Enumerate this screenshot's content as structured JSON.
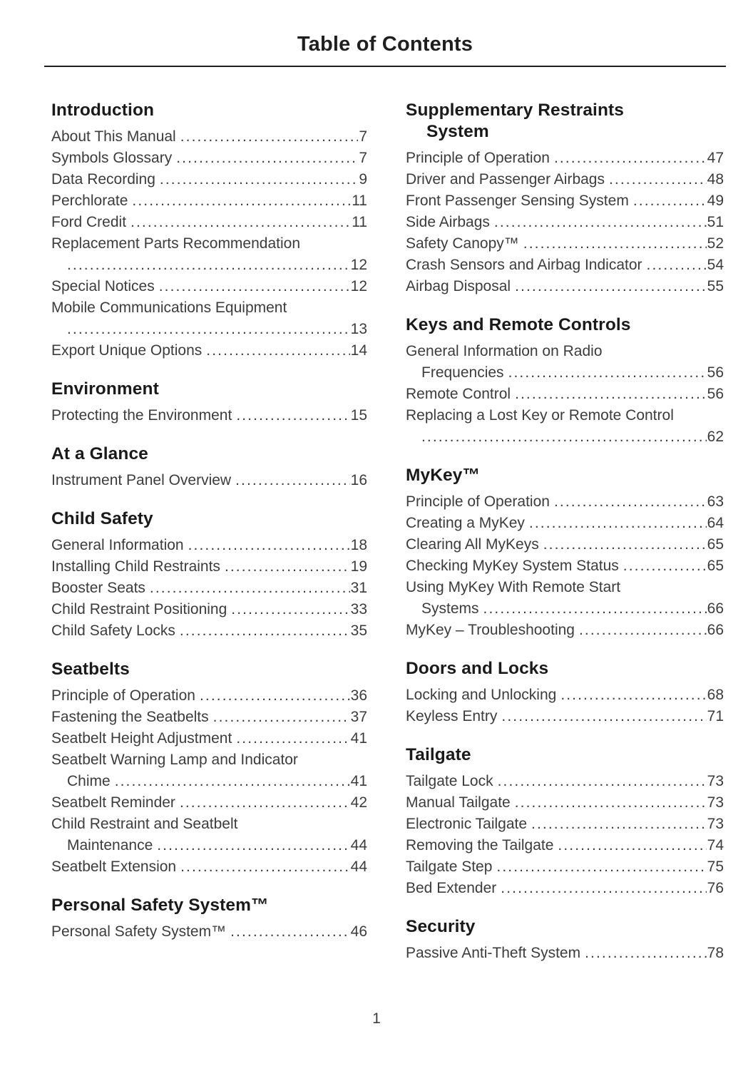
{
  "page": {
    "title": "Table of Contents",
    "page_number": "1"
  },
  "columns": {
    "left": [
      {
        "title": "Introduction",
        "entries": [
          {
            "text": "About This Manual",
            "page": "7"
          },
          {
            "text": "Symbols Glossary",
            "page": "7"
          },
          {
            "text": "Data Recording",
            "page": "9"
          },
          {
            "text": "Perchlorate",
            "page": "11"
          },
          {
            "text": "Ford Credit",
            "page": "11"
          },
          {
            "text": "Replacement Parts Recommendation",
            "text2": "",
            "page": "12"
          },
          {
            "text": "Special Notices",
            "page": "12"
          },
          {
            "text": "Mobile Communications Equipment",
            "text2": "",
            "page": "13"
          },
          {
            "text": "Export Unique Options",
            "page": "14"
          }
        ]
      },
      {
        "title": "Environment",
        "entries": [
          {
            "text": "Protecting the Environment",
            "page": "15"
          }
        ]
      },
      {
        "title": "At a Glance",
        "entries": [
          {
            "text": "Instrument Panel Overview",
            "page": "16"
          }
        ]
      },
      {
        "title": "Child Safety",
        "entries": [
          {
            "text": "General Information",
            "page": "18"
          },
          {
            "text": "Installing Child Restraints",
            "page": "19"
          },
          {
            "text": "Booster Seats",
            "page": "31"
          },
          {
            "text": "Child Restraint Positioning",
            "page": "33"
          },
          {
            "text": "Child Safety Locks",
            "page": "35"
          }
        ]
      },
      {
        "title": "Seatbelts",
        "entries": [
          {
            "text": "Principle of Operation",
            "page": "36"
          },
          {
            "text": "Fastening the Seatbelts",
            "page": "37"
          },
          {
            "text": "Seatbelt Height Adjustment",
            "page": "41"
          },
          {
            "text": "Seatbelt Warning Lamp and Indicator",
            "text2": "Chime",
            "page": "41"
          },
          {
            "text": "Seatbelt Reminder",
            "page": "42"
          },
          {
            "text": "Child Restraint and Seatbelt",
            "text2": "Maintenance",
            "page": "44"
          },
          {
            "text": "Seatbelt Extension",
            "page": "44"
          }
        ]
      },
      {
        "title": "Personal Safety System™",
        "entries": [
          {
            "text": "Personal Safety System™",
            "page": "46"
          }
        ]
      }
    ],
    "right": [
      {
        "title": "Supplementary Restraints",
        "title2": "System",
        "entries": [
          {
            "text": "Principle of Operation",
            "page": "47"
          },
          {
            "text": "Driver and Passenger Airbags",
            "page": "48"
          },
          {
            "text": "Front Passenger Sensing System",
            "page": "49"
          },
          {
            "text": "Side Airbags",
            "page": "51"
          },
          {
            "text": "Safety Canopy™",
            "page": "52"
          },
          {
            "text": "Crash Sensors and Airbag Indicator",
            "page": "54"
          },
          {
            "text": "Airbag Disposal",
            "page": "55"
          }
        ]
      },
      {
        "title": "Keys and Remote Controls",
        "entries": [
          {
            "text": "General Information on Radio",
            "text2": "Frequencies",
            "page": "56"
          },
          {
            "text": "Remote Control",
            "page": "56"
          },
          {
            "text": "Replacing a Lost Key or Remote Control",
            "text2": "",
            "page": "62"
          }
        ]
      },
      {
        "title": "MyKey™",
        "entries": [
          {
            "text": "Principle of Operation",
            "page": "63"
          },
          {
            "text": "Creating a MyKey",
            "page": "64"
          },
          {
            "text": "Clearing All MyKeys",
            "page": "65"
          },
          {
            "text": "Checking MyKey System Status",
            "page": "65"
          },
          {
            "text": "Using MyKey With Remote Start",
            "text2": "Systems",
            "page": "66"
          },
          {
            "text": "MyKey – Troubleshooting",
            "page": "66"
          }
        ]
      },
      {
        "title": "Doors and Locks",
        "entries": [
          {
            "text": "Locking and Unlocking",
            "page": "68"
          },
          {
            "text": "Keyless Entry",
            "page": "71"
          }
        ]
      },
      {
        "title": "Tailgate",
        "entries": [
          {
            "text": "Tailgate Lock",
            "page": "73"
          },
          {
            "text": "Manual Tailgate",
            "page": "73"
          },
          {
            "text": "Electronic Tailgate",
            "page": "73"
          },
          {
            "text": "Removing the Tailgate",
            "page": "74"
          },
          {
            "text": "Tailgate Step",
            "page": "75"
          },
          {
            "text": "Bed Extender",
            "page": "76"
          }
        ]
      },
      {
        "title": "Security",
        "entries": [
          {
            "text": "Passive Anti-Theft System",
            "page": "78"
          }
        ]
      }
    ]
  }
}
